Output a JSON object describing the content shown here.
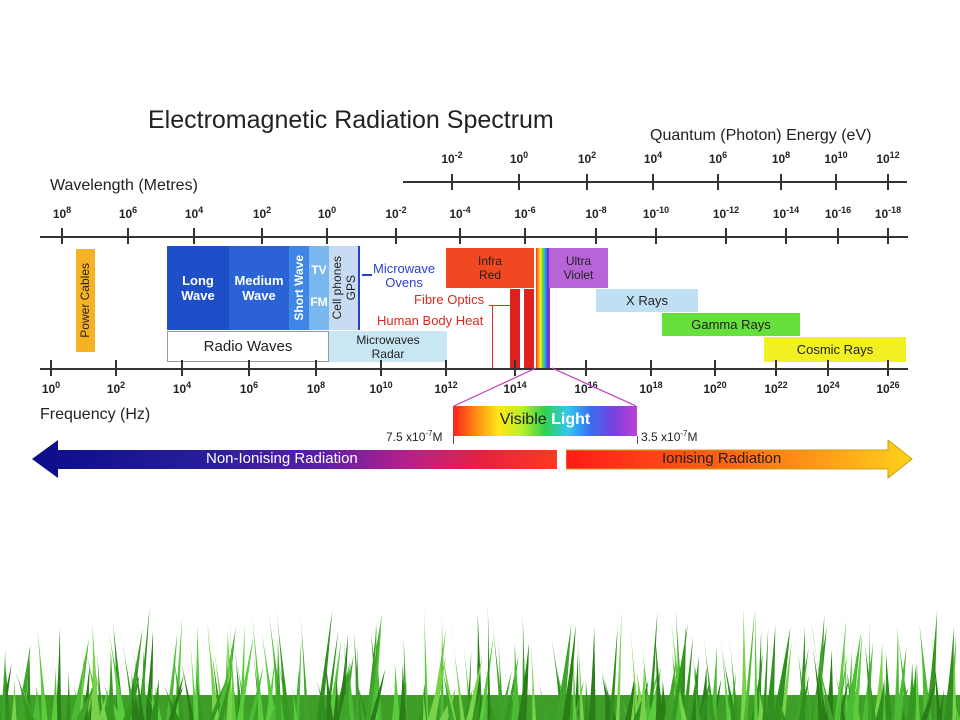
{
  "title": "Electromagnetic Radiation Spectrum",
  "energy_axis": {
    "label": "Quantum (Photon) Energy (eV)",
    "ticks": [
      {
        "base": "10",
        "exp": "-2"
      },
      {
        "base": "10",
        "exp": "0"
      },
      {
        "base": "10",
        "exp": "2"
      },
      {
        "base": "10",
        "exp": "4"
      },
      {
        "base": "10",
        "exp": "6"
      },
      {
        "base": "10",
        "exp": "8"
      },
      {
        "base": "10",
        "exp": "10"
      },
      {
        "base": "10",
        "exp": "12"
      }
    ]
  },
  "wavelength_axis": {
    "label": "Wavelength (Metres)",
    "ticks": [
      {
        "base": "10",
        "exp": "8"
      },
      {
        "base": "10",
        "exp": "6"
      },
      {
        "base": "10",
        "exp": "4"
      },
      {
        "base": "10",
        "exp": "2"
      },
      {
        "base": "10",
        "exp": "0"
      },
      {
        "base": "10",
        "exp": "-2"
      },
      {
        "base": "10",
        "exp": "-4"
      },
      {
        "base": "10",
        "exp": "-6"
      },
      {
        "base": "10",
        "exp": "-8"
      },
      {
        "base": "10",
        "exp": "-10"
      },
      {
        "base": "10",
        "exp": "-12"
      },
      {
        "base": "10",
        "exp": "-14"
      },
      {
        "base": "10",
        "exp": "-16"
      },
      {
        "base": "10",
        "exp": "-18"
      }
    ]
  },
  "frequency_axis": {
    "label": "Frequency (Hz)",
    "ticks": [
      {
        "base": "10",
        "exp": "0"
      },
      {
        "base": "10",
        "exp": "2"
      },
      {
        "base": "10",
        "exp": "4"
      },
      {
        "base": "10",
        "exp": "6"
      },
      {
        "base": "10",
        "exp": "8"
      },
      {
        "base": "10",
        "exp": "10"
      },
      {
        "base": "10",
        "exp": "12"
      },
      {
        "base": "10",
        "exp": "14"
      },
      {
        "base": "10",
        "exp": "16"
      },
      {
        "base": "10",
        "exp": "18"
      },
      {
        "base": "10",
        "exp": "20"
      },
      {
        "base": "10",
        "exp": "22"
      },
      {
        "base": "10",
        "exp": "24"
      },
      {
        "base": "10",
        "exp": "26"
      }
    ]
  },
  "bands": {
    "power_cables": "Power Cables",
    "long_wave": "Long\nWave",
    "medium_wave": "Medium\nWave",
    "short_wave": "Short Wave",
    "tv": "TV",
    "fm": "FM",
    "cell_gps": "Cell phones\nGPS",
    "radio_waves": "Radio Waves",
    "microwave_ovens": "Microwave\nOvens",
    "microwaves_radar": "Microwaves\nRadar",
    "infra_red": "Infra\nRed",
    "fibre_optics": "Fibre Optics",
    "human_body_heat": "Human Body Heat",
    "ultra_violet": "Ultra\nViolet",
    "x_rays": "X Rays",
    "gamma_rays": "Gamma Rays",
    "cosmic_rays": "Cosmic Rays"
  },
  "visible_light": {
    "word1": "Visible",
    "word2": "Light",
    "left_wavelength": "7.5 x10",
    "left_exp": "-7",
    "left_unit": "M",
    "right_wavelength": "3.5 x10",
    "right_exp": "-7",
    "right_unit": "M"
  },
  "arrows": {
    "non_ionising": "Non-Ionising Radiation",
    "ionising": "Ionising Radiation"
  },
  "colors": {
    "long_wave": "#1f4fc8",
    "medium_wave": "#2b63d6",
    "short_wave": "#3f86e6",
    "tv_fm": "#78b8ef",
    "cell_gps": "#c7dcf2",
    "power_cables": "#f5b323",
    "infra_red": "#f04820",
    "ultra_violet": "#b764d8",
    "x_rays": "#bfe0f3",
    "gamma_rays": "#66e03c",
    "cosmic_rays": "#f2f022",
    "microwaves_radar": "#c8e6f4",
    "red_label": "#e0281c",
    "blue_label": "#2a3fcf"
  }
}
